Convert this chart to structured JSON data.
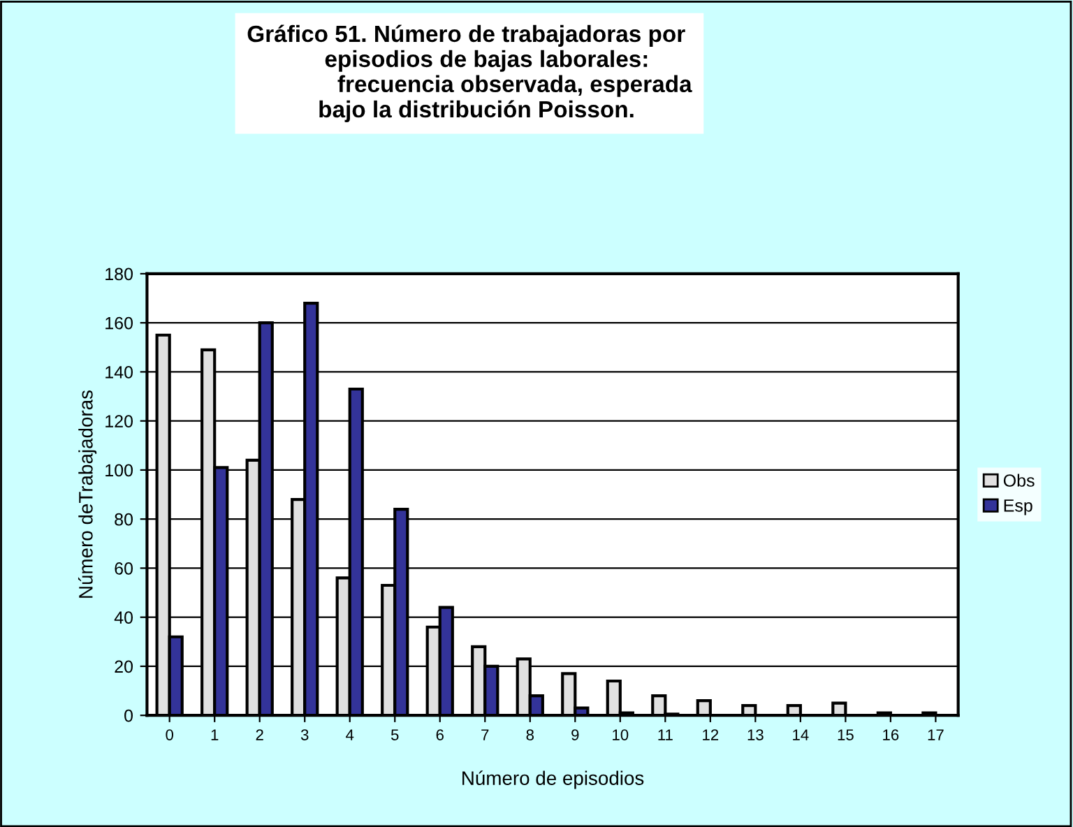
{
  "chart_data": {
    "type": "bar",
    "title": "Gráfico 51. Número de trabajadoras por\n            episodios de bajas laborales:\n              frecuencia observada, esperada\n           bajo la distribución Poisson.",
    "xlabel": "Número de episodios",
    "ylabel": "Número deTrabajadoras",
    "categories": [
      "0",
      "1",
      "2",
      "3",
      "4",
      "5",
      "6",
      "7",
      "8",
      "9",
      "10",
      "11",
      "12",
      "13",
      "14",
      "15",
      "16",
      "17"
    ],
    "series": [
      {
        "name": "Obs",
        "color": "#e0e0e0",
        "values": [
          155,
          149,
          104,
          88,
          56,
          53,
          36,
          28,
          23,
          17,
          14,
          8,
          6,
          4,
          4,
          5,
          1,
          1
        ]
      },
      {
        "name": "Esp",
        "color": "#333399",
        "values": [
          32,
          101,
          160,
          168,
          133,
          84,
          44,
          20,
          8,
          3,
          1,
          0.5,
          0,
          0,
          0,
          0,
          0,
          0
        ]
      }
    ],
    "ylim": [
      0,
      180
    ],
    "yticks": [
      0,
      20,
      40,
      60,
      80,
      100,
      120,
      140,
      160,
      180
    ],
    "grid": "y",
    "legend": "right"
  }
}
